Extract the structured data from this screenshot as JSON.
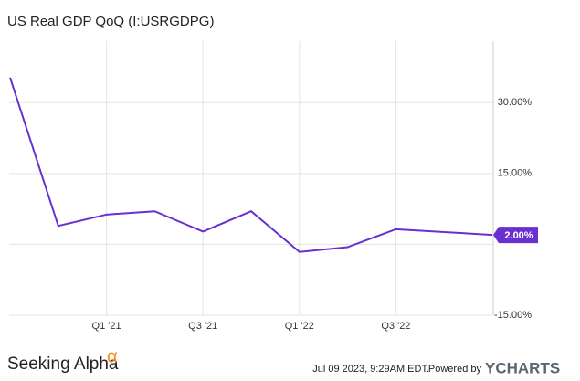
{
  "chart_data": {
    "type": "line",
    "title": "US Real GDP QoQ (I:USRGDPG)",
    "categories": [
      null,
      null,
      "Q1 '21",
      null,
      "Q3 '21",
      null,
      "Q1 '22",
      null,
      "Q3 '22",
      null,
      null
    ],
    "series": [
      {
        "name": "US Real GDP QoQ",
        "color": "#6a2fd0",
        "values": [
          35.3,
          3.9,
          6.3,
          7.0,
          2.7,
          7.0,
          -1.6,
          -0.6,
          3.2,
          2.6,
          2.0
        ]
      }
    ],
    "last_value_label": "2.00%",
    "ylim": [
      -15,
      43
    ],
    "yticks": [
      {
        "value": -15,
        "label": "-15.00%"
      },
      {
        "value": 0,
        "label": ""
      },
      {
        "value": 15,
        "label": "15.00%"
      },
      {
        "value": 30,
        "label": "30.00%"
      }
    ],
    "grid": true
  },
  "footer": {
    "brand": "Seeking Alpha",
    "brand_mark": "α",
    "timestamp": "Jul 09 2023, 9:29AM EDT.",
    "powered_by": "Powered by",
    "provider": "YCHARTS"
  }
}
